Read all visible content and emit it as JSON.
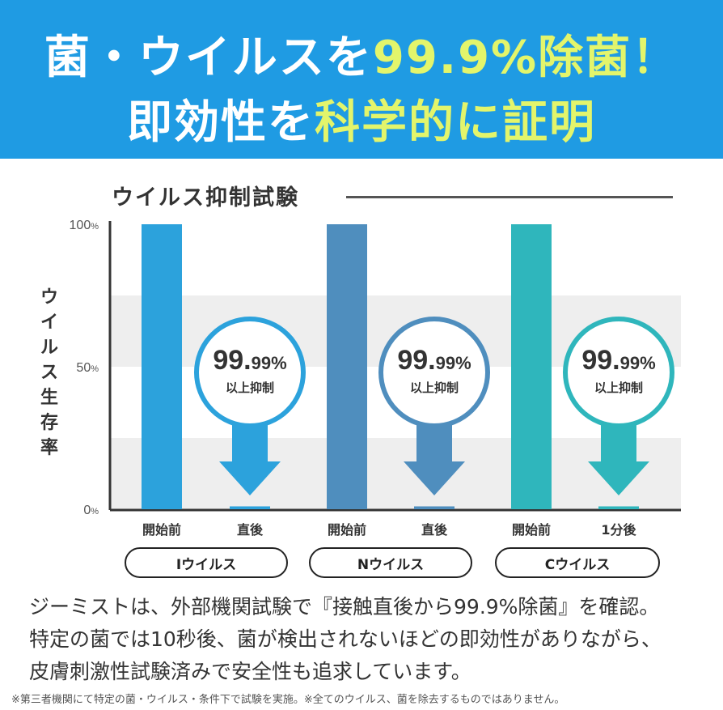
{
  "headline": {
    "line1_a": "菌・ウイルスを",
    "line1_b": "99.9%除菌！",
    "line2_a": "即効性を",
    "line2_b": "科学的に証明"
  },
  "section_title": "ウイルス抑制試験",
  "colors": {
    "banner": "#1f9be3",
    "highlight": "#e3f56b",
    "I": "#2ca2dc",
    "N": "#4f8ebe",
    "C": "#2fb6bc"
  },
  "chart_data": {
    "type": "bar",
    "ylabel": "ウイルス生存率",
    "yticks": [
      "0%",
      "50%",
      "100%"
    ],
    "ylim": [
      0,
      100
    ],
    "groups": [
      {
        "name": "Iウイルス",
        "color_key": "I",
        "categories": [
          "開始前",
          "直後"
        ],
        "values": [
          100,
          1
        ],
        "badge_value": "99.",
        "badge_decimal": "99%",
        "badge_text": "以上抑制"
      },
      {
        "name": "Nウイルス",
        "color_key": "N",
        "categories": [
          "開始前",
          "直後"
        ],
        "values": [
          100,
          1
        ],
        "badge_value": "99.",
        "badge_decimal": "99%",
        "badge_text": "以上抑制"
      },
      {
        "name": "Cウイルス",
        "color_key": "C",
        "categories": [
          "開始前",
          "1分後"
        ],
        "values": [
          100,
          1
        ],
        "badge_value": "99.",
        "badge_decimal": "99%",
        "badge_text": "以上抑制"
      }
    ]
  },
  "description": [
    "ジーミストは、外部機関試験で『接触直後から99.9%除菌』を確認。",
    "特定の菌では10秒後、菌が検出されないほどの即効性がありながら、",
    "皮膚刺激性試験済みで安全性も追求しています。"
  ],
  "footnote": "※第三者機関にて特定の菌・ウイルス・条件下で試験を実施。※全てのウイルス、菌を除去するものではありません。"
}
